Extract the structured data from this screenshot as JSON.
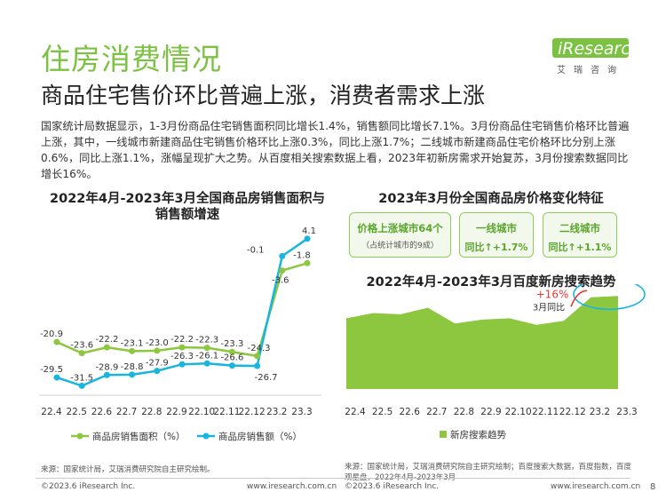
{
  "header": {
    "title": "住房消费情况",
    "subtitle": "商品住宅售价环比普遍上涨，消费者需求上涨",
    "logo_text": "iResearch",
    "logo_cn": "艾瑞咨询"
  },
  "intro": "国家统计局数据显示，1-3月份商品住宅销售面积同比增长1.4%，销售额同比增长7.1%。3月份商品住宅销售价格环比普遍上涨，其中，一线城市新建商品住宅销售价格环比上涨0.3%，同比上涨1.7%；二线城市新建商品住宅价格环比分别上涨0.6%，同比上涨1.1%，涨幅呈现扩大之势。从百度相关搜索数据上看，2023年初新房需求开始复苏，3月份搜索数据同比增长16%。",
  "left_chart": {
    "title_line1": "2022年4月-2023年3月全国商品房销售面积与",
    "title_line2": "销售额增速",
    "source": "来源：国家统计局，艾瑞消费研究院自主研究绘制。"
  },
  "right_top": {
    "title": "2023年3月份全国商品房价格变化特征",
    "cards": [
      {
        "line1": "价格上涨城市64个",
        "line2": "（占统计城市的9成）"
      },
      {
        "line1": "一线城市",
        "line2": "同比↑+1.7%"
      },
      {
        "line1": "二线城市",
        "line2": "同比↑+1.1%"
      }
    ]
  },
  "right_chart": {
    "title": "2022年4月-2023年3月百度新房搜索趋势",
    "annotation_value": "+16%",
    "annotation_label": "3月同比",
    "source": "来源：国家统计局，艾瑞消费研究院自主研究绘制；百度搜索大数据，百度指数，百度观星盘，2022年4月-2023年3月"
  },
  "footer": {
    "copyright_left": "©2023.6 iResearch Inc.",
    "url_left": "www.iresearch.com.cn",
    "copyright_right": "©2023.6 iResearch Inc.",
    "url_right": "www.iresearch.com.cn",
    "page": "8"
  },
  "colors": {
    "green": "#8dc63f",
    "blue": "#19b5e0",
    "title_green": "#7cc242"
  },
  "chart_data": [
    {
      "type": "line",
      "categories": [
        "22.4",
        "22.5",
        "22.6",
        "22.7",
        "22.8",
        "22.9",
        "22.10",
        "22.11",
        "22.12",
        "23.2",
        "23.3"
      ],
      "series": [
        {
          "name": "商品房销售面积（%）",
          "values": [
            -20.9,
            -23.6,
            -22.2,
            -23.1,
            -23.0,
            -22.2,
            -22.3,
            -23.3,
            -24.3,
            -3.6,
            -1.8
          ]
        },
        {
          "name": "商品房销售额（%）",
          "values": [
            -29.5,
            -31.5,
            -28.9,
            -28.8,
            -27.9,
            -26.3,
            -26.1,
            -26.6,
            -26.7,
            -0.1,
            4.1
          ]
        }
      ],
      "labels": {
        "area": [
          "-20.9",
          "-23.6",
          "-22.2",
          "-23.1",
          "-23.0",
          "-22.2",
          "-22.3",
          "-23.3",
          "-24.3",
          "-3.6",
          "-1.8"
        ],
        "amount": [
          "-29.5",
          "-31.5",
          "-28.9",
          "-28.8",
          "-27.9",
          "-26.3",
          "-26.1",
          "-26.6",
          "-26.7",
          "-0.1",
          "4.1"
        ]
      },
      "ylim": [
        -34,
        6
      ],
      "legend": "bottom"
    },
    {
      "type": "area",
      "categories": [
        "22.4",
        "22.5",
        "22.6",
        "22.7",
        "22.8",
        "22.9",
        "22.10",
        "22.11",
        "22.12",
        "23.2",
        "23.3"
      ],
      "series": [
        {
          "name": "新房搜索趋势",
          "values": [
            54,
            58,
            57,
            62,
            50,
            53,
            54,
            49,
            52,
            70,
            71
          ]
        }
      ],
      "ylim": [
        0,
        80
      ],
      "legend": "bottom"
    }
  ]
}
